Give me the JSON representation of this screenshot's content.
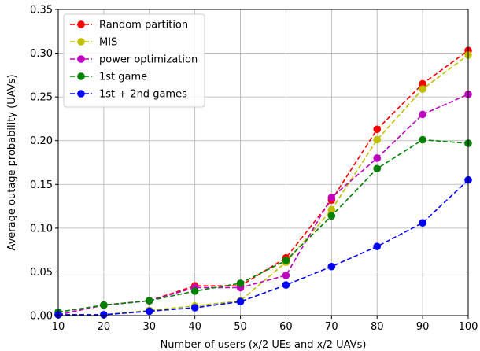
{
  "chart_data": {
    "type": "line",
    "title": "",
    "xlabel": "Number of users (x/2 UEs and x/2 UAVs)",
    "ylabel": "Average outage probability (UAVs)",
    "x": [
      10,
      20,
      30,
      40,
      50,
      60,
      70,
      80,
      90,
      100
    ],
    "xlim": [
      10,
      100
    ],
    "ylim": [
      0,
      0.35
    ],
    "x_ticks": [
      "10",
      "20",
      "30",
      "40",
      "50",
      "60",
      "70",
      "80",
      "90",
      "100"
    ],
    "y_ticks": [
      "0.00",
      "0.05",
      "0.10",
      "0.15",
      "0.20",
      "0.25",
      "0.30",
      "0.35"
    ],
    "grid": true,
    "legend_position": "top-left",
    "line_style": "dashed",
    "marker": "circle",
    "series": [
      {
        "name": "Random partition",
        "color": "#ff0000",
        "values": [
          0.001,
          0.012,
          0.017,
          0.034,
          0.034,
          0.066,
          0.132,
          0.213,
          0.265,
          0.303
        ]
      },
      {
        "name": "MIS",
        "color": "#bfbf00",
        "values": [
          0.001,
          0.001,
          0.006,
          0.011,
          0.017,
          0.061,
          0.121,
          0.201,
          0.259,
          0.298
        ]
      },
      {
        "name": "power optimization",
        "color": "#bf00bf",
        "values": [
          0.001,
          0.012,
          0.017,
          0.032,
          0.032,
          0.046,
          0.135,
          0.18,
          0.23,
          0.253
        ]
      },
      {
        "name": "1st game",
        "color": "#008000",
        "values": [
          0.004,
          0.012,
          0.017,
          0.028,
          0.037,
          0.063,
          0.114,
          0.168,
          0.201,
          0.197
        ]
      },
      {
        "name": "1st + 2nd games",
        "color": "#0000ff",
        "values": [
          0.001,
          0.001,
          0.005,
          0.009,
          0.016,
          0.035,
          0.056,
          0.079,
          0.106,
          0.155
        ]
      }
    ]
  }
}
